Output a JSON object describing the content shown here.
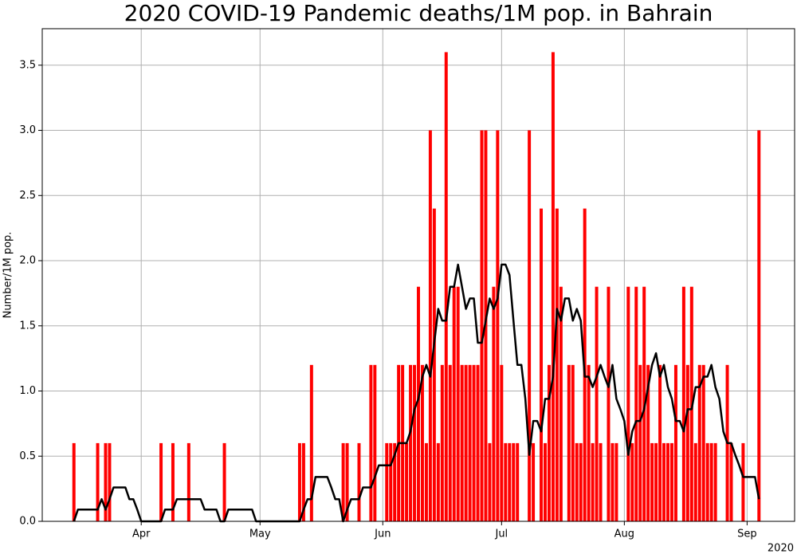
{
  "chart_data": {
    "type": "bar",
    "title": "2020 COVID-19 Pandemic deaths/1M pop. in Bahrain",
    "y_label": "Number/1M pop.",
    "x_offset_label": "2020",
    "grid": true,
    "xlim": [
      "2020-03-07",
      "2020-09-13"
    ],
    "xticks": [
      {
        "value": "2020-04-01",
        "label": "Apr"
      },
      {
        "value": "2020-05-01",
        "label": "May"
      },
      {
        "value": "2020-06-01",
        "label": "Jun"
      },
      {
        "value": "2020-07-01",
        "label": "Jul"
      },
      {
        "value": "2020-08-01",
        "label": "Aug"
      },
      {
        "value": "2020-09-01",
        "label": "Sep"
      }
    ],
    "ylim": [
      0,
      3.78
    ],
    "yticks": [
      {
        "value": 0,
        "label": "0.0"
      },
      0.5,
      {
        "value": 1,
        "label": "1.0"
      },
      1.5,
      {
        "value": 2,
        "label": "2.0"
      },
      2.5,
      {
        "value": 3,
        "label": "3.0"
      },
      3.5
    ],
    "x": [
      "2020-03-15",
      "2020-03-16",
      "2020-03-17",
      "2020-03-18",
      "2020-03-19",
      "2020-03-20",
      "2020-03-21",
      "2020-03-22",
      "2020-03-23",
      "2020-03-24",
      "2020-03-25",
      "2020-03-26",
      "2020-03-27",
      "2020-03-28",
      "2020-03-29",
      "2020-03-30",
      "2020-03-31",
      "2020-04-01",
      "2020-04-02",
      "2020-04-03",
      "2020-04-04",
      "2020-04-05",
      "2020-04-06",
      "2020-04-07",
      "2020-04-08",
      "2020-04-09",
      "2020-04-10",
      "2020-04-11",
      "2020-04-12",
      "2020-04-13",
      "2020-04-14",
      "2020-04-15",
      "2020-04-16",
      "2020-04-17",
      "2020-04-18",
      "2020-04-19",
      "2020-04-20",
      "2020-04-21",
      "2020-04-22",
      "2020-04-23",
      "2020-04-24",
      "2020-04-25",
      "2020-04-26",
      "2020-04-27",
      "2020-04-28",
      "2020-04-29",
      "2020-04-30",
      "2020-05-01",
      "2020-05-02",
      "2020-05-03",
      "2020-05-04",
      "2020-05-05",
      "2020-05-06",
      "2020-05-07",
      "2020-05-08",
      "2020-05-09",
      "2020-05-10",
      "2020-05-11",
      "2020-05-12",
      "2020-05-13",
      "2020-05-14",
      "2020-05-15",
      "2020-05-16",
      "2020-05-17",
      "2020-05-18",
      "2020-05-19",
      "2020-05-20",
      "2020-05-21",
      "2020-05-22",
      "2020-05-23",
      "2020-05-24",
      "2020-05-25",
      "2020-05-26",
      "2020-05-27",
      "2020-05-28",
      "2020-05-29",
      "2020-05-30",
      "2020-05-31",
      "2020-06-01",
      "2020-06-02",
      "2020-06-03",
      "2020-06-04",
      "2020-06-05",
      "2020-06-06",
      "2020-06-07",
      "2020-06-08",
      "2020-06-09",
      "2020-06-10",
      "2020-06-11",
      "2020-06-12",
      "2020-06-13",
      "2020-06-14",
      "2020-06-15",
      "2020-06-16",
      "2020-06-17",
      "2020-06-18",
      "2020-06-19",
      "2020-06-20",
      "2020-06-21",
      "2020-06-22",
      "2020-06-23",
      "2020-06-24",
      "2020-06-25",
      "2020-06-26",
      "2020-06-27",
      "2020-06-28",
      "2020-06-29",
      "2020-06-30",
      "2020-07-01",
      "2020-07-02",
      "2020-07-03",
      "2020-07-04",
      "2020-07-05",
      "2020-07-06",
      "2020-07-07",
      "2020-07-08",
      "2020-07-09",
      "2020-07-10",
      "2020-07-11",
      "2020-07-12",
      "2020-07-13",
      "2020-07-14",
      "2020-07-15",
      "2020-07-16",
      "2020-07-17",
      "2020-07-18",
      "2020-07-19",
      "2020-07-20",
      "2020-07-21",
      "2020-07-22",
      "2020-07-23",
      "2020-07-24",
      "2020-07-25",
      "2020-07-26",
      "2020-07-27",
      "2020-07-28",
      "2020-07-29",
      "2020-07-30",
      "2020-07-31",
      "2020-08-01",
      "2020-08-02",
      "2020-08-03",
      "2020-08-04",
      "2020-08-05",
      "2020-08-06",
      "2020-08-07",
      "2020-08-08",
      "2020-08-09",
      "2020-08-10",
      "2020-08-11",
      "2020-08-12",
      "2020-08-13",
      "2020-08-14",
      "2020-08-15",
      "2020-08-16",
      "2020-08-17",
      "2020-08-18",
      "2020-08-19",
      "2020-08-20",
      "2020-08-21",
      "2020-08-22",
      "2020-08-23",
      "2020-08-24",
      "2020-08-25",
      "2020-08-26",
      "2020-08-27",
      "2020-08-28",
      "2020-08-29",
      "2020-08-30",
      "2020-08-31",
      "2020-09-01",
      "2020-09-02",
      "2020-09-03",
      "2020-09-04"
    ],
    "series": [
      {
        "type": "bar",
        "color": "#ff0000",
        "values": [
          0.6,
          0,
          0,
          0,
          0,
          0,
          0.6,
          0,
          0.6,
          0.6,
          0,
          0,
          0,
          0,
          0,
          0,
          0,
          0,
          0,
          0,
          0,
          0,
          0.6,
          0,
          0,
          0.6,
          0,
          0,
          0,
          0.6,
          0,
          0,
          0,
          0,
          0,
          0,
          0,
          0,
          0.6,
          0,
          0,
          0,
          0,
          0,
          0,
          0,
          0,
          0,
          0,
          0,
          0,
          0,
          0,
          0,
          0,
          0,
          0,
          0.6,
          0.6,
          0,
          1.2,
          0,
          0,
          0,
          0,
          0,
          0,
          0,
          0.6,
          0.6,
          0,
          0,
          0.6,
          0,
          0,
          1.2,
          1.2,
          0,
          0,
          0.6,
          0.6,
          0.6,
          1.2,
          1.2,
          0.6,
          1.2,
          1.2,
          1.8,
          1.2,
          0.6,
          3.0,
          2.4,
          0.6,
          1.2,
          3.6,
          1.2,
          1.8,
          1.8,
          1.2,
          1.2,
          1.2,
          1.2,
          1.2,
          3.0,
          3.0,
          0.6,
          1.8,
          3.0,
          1.2,
          0.6,
          0.6,
          0.6,
          0.6,
          0,
          0,
          3.0,
          0.6,
          0,
          2.4,
          0.6,
          1.2,
          3.6,
          2.4,
          1.8,
          0,
          1.2,
          1.2,
          0.6,
          0.6,
          2.4,
          1.2,
          0.6,
          1.8,
          0.6,
          0,
          1.8,
          0.6,
          0.6,
          0,
          0,
          1.8,
          0.6,
          1.8,
          1.2,
          1.8,
          1.2,
          0.6,
          0.6,
          1.2,
          0.6,
          0.6,
          0.6,
          1.2,
          0,
          1.8,
          1.2,
          1.8,
          0.6,
          1.2,
          1.2,
          0.6,
          0.6,
          0.6,
          0,
          0,
          1.2,
          0.6,
          0,
          0,
          0.6,
          0,
          0,
          0,
          3.0
        ]
      },
      {
        "type": "line",
        "color": "#000000",
        "values": [
          0,
          0.09,
          0.09,
          0.09,
          0.09,
          0.09,
          0.09,
          0.17,
          0.09,
          0.17,
          0.26,
          0.26,
          0.26,
          0.26,
          0.17,
          0.17,
          0.09,
          0,
          0,
          0,
          0,
          0,
          0,
          0.09,
          0.09,
          0.09,
          0.17,
          0.17,
          0.17,
          0.17,
          0.17,
          0.17,
          0.17,
          0.09,
          0.09,
          0.09,
          0.09,
          0,
          0,
          0.09,
          0.09,
          0.09,
          0.09,
          0.09,
          0.09,
          0.09,
          0,
          0,
          0,
          0,
          0,
          0,
          0,
          0,
          0,
          0,
          0,
          0,
          0.09,
          0.17,
          0.17,
          0.34,
          0.34,
          0.34,
          0.34,
          0.26,
          0.17,
          0.17,
          0,
          0.09,
          0.17,
          0.17,
          0.17,
          0.26,
          0.26,
          0.26,
          0.34,
          0.43,
          0.43,
          0.43,
          0.43,
          0.51,
          0.6,
          0.6,
          0.6,
          0.69,
          0.86,
          0.94,
          1.11,
          1.2,
          1.11,
          1.37,
          1.63,
          1.54,
          1.54,
          1.8,
          1.8,
          1.97,
          1.8,
          1.63,
          1.71,
          1.71,
          1.37,
          1.37,
          1.54,
          1.71,
          1.63,
          1.71,
          1.97,
          1.97,
          1.89,
          1.54,
          1.2,
          1.2,
          0.94,
          0.51,
          0.77,
          0.77,
          0.69,
          0.94,
          0.94,
          1.11,
          1.63,
          1.54,
          1.71,
          1.71,
          1.54,
          1.63,
          1.54,
          1.11,
          1.11,
          1.03,
          1.11,
          1.2,
          1.11,
          1.03,
          1.2,
          0.94,
          0.86,
          0.77,
          0.51,
          0.69,
          0.77,
          0.77,
          0.86,
          1.03,
          1.2,
          1.29,
          1.11,
          1.2,
          1.03,
          0.94,
          0.77,
          0.77,
          0.69,
          0.86,
          0.86,
          1.03,
          1.03,
          1.11,
          1.11,
          1.2,
          1.03,
          0.94,
          0.69,
          0.6,
          0.6,
          0.51,
          0.43,
          0.34,
          0.34,
          0.34,
          0.34,
          0.17
        ]
      }
    ]
  }
}
